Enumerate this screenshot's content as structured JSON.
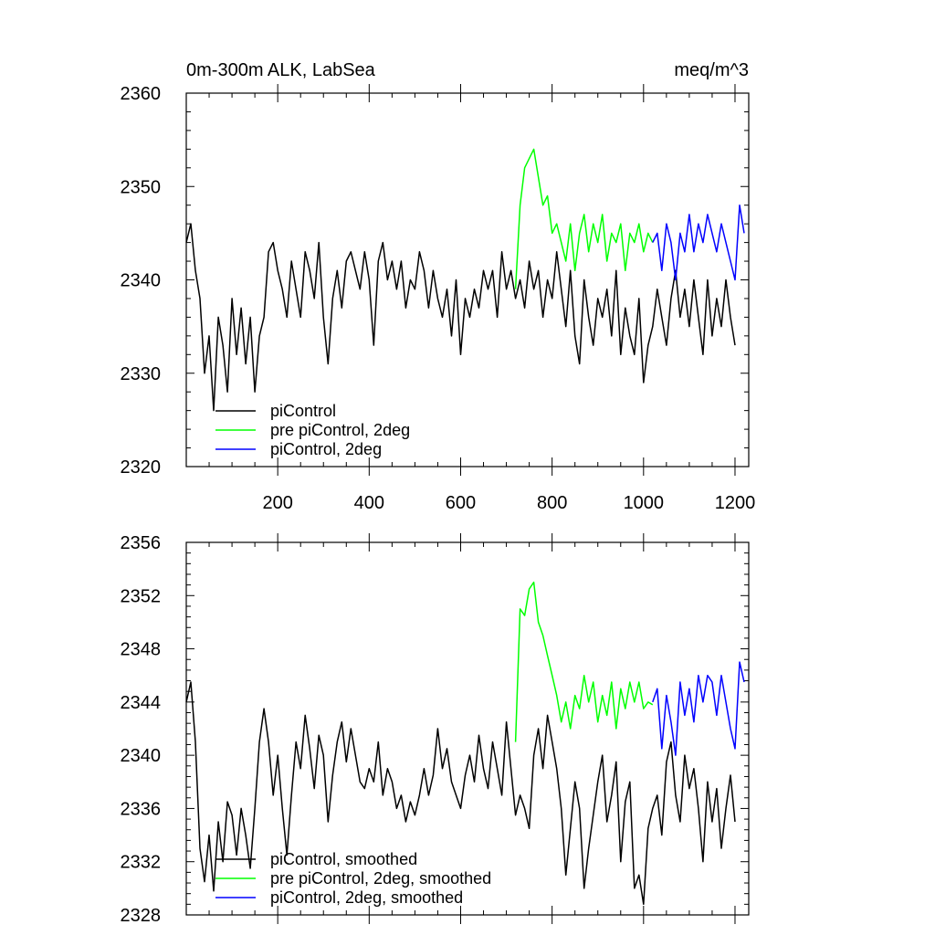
{
  "chart_data": [
    {
      "type": "line",
      "title": "0m-300m ALK, LabSea",
      "units": "meq/m^3",
      "xlabel": "",
      "ylabel": "",
      "xlim": [
        0,
        1230
      ],
      "ylim": [
        2320,
        2360
      ],
      "x_ticks": [
        200,
        400,
        600,
        800,
        1000,
        1200
      ],
      "x_tick_labels": [
        "200",
        "400",
        "600",
        "800",
        "1000",
        "1200"
      ],
      "y_ticks": [
        2320,
        2330,
        2340,
        2350,
        2360
      ],
      "y_tick_labels": [
        "2320",
        "2330",
        "2340",
        "2350",
        "2360"
      ],
      "legend_position": "bottom-left",
      "grid": false,
      "series": [
        {
          "name": "piControl",
          "color": "#000000",
          "x": [
            0,
            10,
            20,
            30,
            40,
            50,
            60,
            70,
            80,
            90,
            100,
            110,
            120,
            130,
            140,
            150,
            160,
            170,
            180,
            190,
            200,
            210,
            220,
            230,
            240,
            250,
            260,
            270,
            280,
            290,
            300,
            310,
            320,
            330,
            340,
            350,
            360,
            370,
            380,
            390,
            400,
            410,
            420,
            430,
            440,
            450,
            460,
            470,
            480,
            490,
            500,
            510,
            520,
            530,
            540,
            550,
            560,
            570,
            580,
            590,
            600,
            610,
            620,
            630,
            640,
            650,
            660,
            670,
            680,
            690,
            700,
            710,
            720,
            730,
            740,
            750,
            760,
            770,
            780,
            790,
            800,
            810,
            820,
            830,
            840,
            850,
            860,
            870,
            880,
            890,
            900,
            910,
            920,
            930,
            940,
            950,
            960,
            970,
            980,
            990,
            1000,
            1010,
            1020,
            1030,
            1040,
            1050,
            1060,
            1070,
            1080,
            1090,
            1100,
            1110,
            1120,
            1130,
            1140,
            1150,
            1160,
            1170,
            1180,
            1190,
            1200
          ],
          "values": [
            2344,
            2346,
            2341,
            2338,
            2330,
            2334,
            2326,
            2336,
            2333,
            2328,
            2338,
            2332,
            2337,
            2331,
            2336,
            2328,
            2334,
            2336,
            2343,
            2344,
            2341,
            2339,
            2336,
            2342,
            2339,
            2336,
            2343,
            2341,
            2338,
            2344,
            2336,
            2331,
            2338,
            2341,
            2337,
            2342,
            2343,
            2341,
            2339,
            2343,
            2340,
            2333,
            2342,
            2344,
            2340,
            2342,
            2339,
            2342,
            2337,
            2340,
            2339,
            2343,
            2341,
            2337,
            2341,
            2338,
            2336,
            2339,
            2334,
            2340,
            2332,
            2338,
            2336,
            2339,
            2337,
            2341,
            2339,
            2341,
            2336,
            2343,
            2339,
            2341,
            2338,
            2340,
            2337,
            2342,
            2339,
            2341,
            2336,
            2340,
            2338,
            2343,
            2339,
            2335,
            2341,
            2334,
            2331,
            2340,
            2336,
            2333,
            2338,
            2336,
            2339,
            2334,
            2341,
            2332,
            2337,
            2334,
            2332,
            2338,
            2329,
            2333,
            2335,
            2339,
            2336,
            2333,
            2338,
            2341,
            2336,
            2339,
            2335,
            2340,
            2336,
            2332,
            2340,
            2334,
            2338,
            2335,
            2340,
            2336,
            2333
          ]
        },
        {
          "name": "pre piControl, 2deg",
          "color": "#00ff00",
          "x": [
            720,
            730,
            740,
            750,
            760,
            770,
            780,
            790,
            800,
            810,
            820,
            830,
            840,
            850,
            860,
            870,
            880,
            890,
            900,
            910,
            920,
            930,
            940,
            950,
            960,
            970,
            980,
            990,
            1000,
            1010,
            1020
          ],
          "values": [
            2339,
            2348,
            2352,
            2353,
            2354,
            2351,
            2348,
            2349,
            2345,
            2346,
            2344,
            2342,
            2346,
            2341,
            2345,
            2347,
            2343,
            2346,
            2344,
            2347,
            2342,
            2345,
            2344,
            2346,
            2341,
            2345,
            2344,
            2346,
            2343,
            2345,
            2344
          ]
        },
        {
          "name": "piControl, 2deg",
          "color": "#0000ff",
          "x": [
            1020,
            1030,
            1040,
            1050,
            1060,
            1070,
            1080,
            1090,
            1100,
            1110,
            1120,
            1130,
            1140,
            1150,
            1160,
            1170,
            1180,
            1190,
            1200,
            1210,
            1220
          ],
          "values": [
            2344,
            2345,
            2341,
            2346,
            2344,
            2340,
            2345,
            2343,
            2347,
            2343,
            2346,
            2344,
            2347,
            2345,
            2343,
            2346,
            2344,
            2342,
            2340,
            2348,
            2345
          ]
        }
      ]
    },
    {
      "type": "line",
      "title": "",
      "xlabel": "",
      "ylabel": "",
      "xlim": [
        0,
        1230
      ],
      "ylim": [
        2328,
        2356
      ],
      "y_ticks": [
        2328,
        2332,
        2336,
        2340,
        2344,
        2348,
        2352,
        2356
      ],
      "y_tick_labels": [
        "2328",
        "2332",
        "2336",
        "2340",
        "2344",
        "2348",
        "2352",
        "2356"
      ],
      "x_ticks": [
        200,
        400,
        600,
        800,
        1000,
        1200
      ],
      "legend_position": "bottom-left",
      "grid": false,
      "series": [
        {
          "name": "piControl, smoothed",
          "color": "#000000",
          "x": [
            0,
            10,
            20,
            30,
            40,
            50,
            60,
            70,
            80,
            90,
            100,
            110,
            120,
            130,
            140,
            150,
            160,
            170,
            180,
            190,
            200,
            210,
            220,
            230,
            240,
            250,
            260,
            270,
            280,
            290,
            300,
            310,
            320,
            330,
            340,
            350,
            360,
            370,
            380,
            390,
            400,
            410,
            420,
            430,
            440,
            450,
            460,
            470,
            480,
            490,
            500,
            510,
            520,
            530,
            540,
            550,
            560,
            570,
            580,
            590,
            600,
            610,
            620,
            630,
            640,
            650,
            660,
            670,
            680,
            690,
            700,
            710,
            720,
            730,
            740,
            750,
            760,
            770,
            780,
            790,
            800,
            810,
            820,
            830,
            840,
            850,
            860,
            870,
            880,
            890,
            900,
            910,
            920,
            930,
            940,
            950,
            960,
            970,
            980,
            990,
            1000,
            1010,
            1020,
            1030,
            1040,
            1050,
            1060,
            1070,
            1080,
            1090,
            1100,
            1110,
            1120,
            1130,
            1140,
            1150,
            1160,
            1170,
            1180,
            1190,
            1200
          ],
          "values": [
            2344,
            2345.5,
            2341,
            2333,
            2330.5,
            2334,
            2329.8,
            2335,
            2332,
            2336.5,
            2335.5,
            2332.5,
            2336,
            2334,
            2331.5,
            2336,
            2341,
            2343.5,
            2341,
            2337,
            2340,
            2336,
            2332.5,
            2337,
            2341,
            2339,
            2343,
            2340.5,
            2337.5,
            2341.5,
            2340,
            2335,
            2338.5,
            2341,
            2342.5,
            2339.5,
            2342,
            2340,
            2338,
            2337.5,
            2339,
            2338,
            2341,
            2337,
            2339,
            2338,
            2336,
            2337,
            2335,
            2336.5,
            2335.5,
            2337,
            2339,
            2337,
            2338.5,
            2342,
            2339,
            2340.5,
            2338,
            2337,
            2336,
            2338.5,
            2340,
            2338,
            2341.5,
            2339,
            2337.5,
            2341,
            2339,
            2337,
            2342.5,
            2339,
            2335.5,
            2337,
            2336,
            2334.5,
            2340,
            2342,
            2339,
            2343,
            2341,
            2339,
            2336,
            2331,
            2334.5,
            2338,
            2336,
            2330,
            2333,
            2335.5,
            2338,
            2340,
            2335,
            2337,
            2339.5,
            2332,
            2336.5,
            2338,
            2330,
            2331,
            2328.8,
            2334.5,
            2336,
            2337,
            2334,
            2339.5,
            2341,
            2337,
            2335,
            2340,
            2337.5,
            2339,
            2336,
            2332,
            2338,
            2335,
            2337.5,
            2333,
            2336,
            2338.5,
            2335
          ]
        },
        {
          "name": "pre piControl, 2deg, smoothed",
          "color": "#00ff00",
          "x": [
            720,
            730,
            740,
            750,
            760,
            770,
            780,
            790,
            800,
            810,
            820,
            830,
            840,
            850,
            860,
            870,
            880,
            890,
            900,
            910,
            920,
            930,
            940,
            950,
            960,
            970,
            980,
            990,
            1000,
            1010,
            1020
          ],
          "values": [
            2341,
            2351,
            2350.5,
            2352.5,
            2353,
            2350,
            2349,
            2347.5,
            2346,
            2344.5,
            2342.5,
            2344,
            2342,
            2344.5,
            2343.5,
            2346,
            2344,
            2345.5,
            2342.5,
            2344.5,
            2343,
            2345.5,
            2342,
            2345,
            2343.5,
            2345.5,
            2344,
            2345.5,
            2343.5,
            2344,
            2343.8
          ]
        },
        {
          "name": "piControl, 2deg, smoothed",
          "color": "#0000ff",
          "x": [
            1020,
            1030,
            1040,
            1050,
            1060,
            1070,
            1080,
            1090,
            1100,
            1110,
            1120,
            1130,
            1140,
            1150,
            1160,
            1170,
            1180,
            1190,
            1200,
            1210,
            1220
          ],
          "values": [
            2344,
            2345,
            2340.5,
            2344.5,
            2342.5,
            2340,
            2345.5,
            2343,
            2345,
            2342.5,
            2346,
            2344,
            2346,
            2345.5,
            2343,
            2346,
            2344,
            2342,
            2340.5,
            2347,
            2345.5
          ]
        }
      ]
    }
  ]
}
